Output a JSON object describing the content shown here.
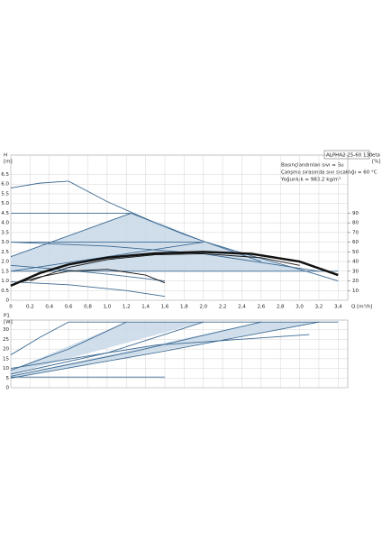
{
  "chart_data": [
    {
      "type": "line",
      "title": "ALPHA2 25-60 130",
      "notes": [
        "Basınçlandırılan sıvı = Su",
        "Çalışma sırasında sıvı sıcaklığı = 60 °C",
        "Yoğunluk = 983.2 kg/m³"
      ],
      "ylabel": [
        "H",
        "[m]"
      ],
      "y2label": [
        "eta",
        "[%]"
      ],
      "xlabel": "Q [m³/h]",
      "xlim": [
        0,
        3.5
      ],
      "ylim": [
        0,
        7.5
      ],
      "y2lim": [
        0,
        150
      ],
      "grid": true,
      "xticks": [
        0,
        {
          "value": 0.2,
          "label": "0,2"
        },
        {
          "value": 0.4,
          "label": "0,4"
        },
        {
          "value": 0.6,
          "label": "0,6"
        },
        {
          "value": 0.8,
          "label": "0,8"
        },
        {
          "value": 1.0,
          "label": "1,0"
        },
        {
          "value": 1.2,
          "label": "1,2"
        },
        {
          "value": 1.4,
          "label": "1,4"
        },
        {
          "value": 1.6,
          "label": "1,6"
        },
        {
          "value": 1.8,
          "label": "1,8"
        },
        {
          "value": 2.0,
          "label": "2,0"
        },
        {
          "value": 2.2,
          "label": "2,2"
        },
        {
          "value": 2.4,
          "label": "2,4"
        },
        {
          "value": 2.6,
          "label": "2,6"
        },
        {
          "value": 2.8,
          "label": "2,8"
        },
        {
          "value": 3.0,
          "label": "3,0"
        },
        {
          "value": 3.2,
          "label": "3,2"
        },
        {
          "value": 3.4,
          "label": "3,4"
        }
      ],
      "yticks": [
        0,
        0.5,
        {
          "value": 1.0,
          "label": "1.0"
        },
        1.5,
        {
          "value": 2.0,
          "label": "2.0"
        },
        2.5,
        {
          "value": 3.0,
          "label": "3.0"
        },
        3.5,
        {
          "value": 4.0,
          "label": "4.0"
        },
        4.5,
        {
          "value": 5.0,
          "label": "5.0"
        },
        5.5,
        {
          "value": 6.0,
          "label": "6.0"
        },
        6.5
      ],
      "y2ticks": [
        10,
        20,
        30,
        40,
        50,
        60,
        70,
        80,
        90
      ],
      "series": [
        {
          "fill": true,
          "color": "#c8d8e8",
          "x": [
            0,
            1.25,
            1.6,
            2.0,
            0
          ],
          "values": [
            2.25,
            4.5,
            3.9,
            3.0,
            1.5
          ]
        },
        {
          "fill": true,
          "color": "#c8d8e8",
          "x": [
            0,
            2.0,
            2.6,
            3.05,
            0
          ],
          "values": [
            1.5,
            3.0,
            2.2,
            1.5,
            1.5
          ]
        },
        {
          "color": "#3d6a92",
          "x": [
            0,
            0.3,
            0.6,
            1.0,
            1.5,
            2.0,
            2.5,
            3.0,
            3.4
          ],
          "values": [
            5.8,
            6.05,
            6.15,
            5.1,
            4.0,
            3.05,
            2.3,
            1.6,
            1.0
          ]
        },
        {
          "color": "#3d6a92",
          "x": [
            0,
            1.25
          ],
          "values": [
            4.5,
            4.5
          ]
        },
        {
          "color": "#3d6a92",
          "x": [
            0,
            2.0
          ],
          "values": [
            3.0,
            3.0
          ]
        },
        {
          "color": "#3d6a92",
          "x": [
            0,
            3.4
          ],
          "values": [
            1.5,
            1.5
          ]
        },
        {
          "color": "#3d6a92",
          "x": [
            0,
            1.25
          ],
          "values": [
            2.25,
            4.5
          ]
        },
        {
          "color": "#3d6a92",
          "x": [
            0,
            2.0
          ],
          "values": [
            1.5,
            3.0
          ]
        },
        {
          "color": "#3d6a92",
          "x": [
            1.25,
            1.8,
            2.6
          ],
          "values": [
            4.5,
            3.4,
            2.0
          ]
        },
        {
          "color": "#3d6a92",
          "x": [
            0,
            1.0,
            2.0,
            2.8,
            3.2
          ],
          "values": [
            3.0,
            2.8,
            2.4,
            1.8,
            1.5
          ]
        },
        {
          "color": "#3d6a92",
          "x": [
            0,
            0.5,
            1.0,
            1.6
          ],
          "values": [
            1.8,
            1.6,
            1.35,
            1.0
          ]
        },
        {
          "color": "#3d6a92",
          "x": [
            0,
            0.6,
            1.2,
            1.6
          ],
          "values": [
            0.95,
            0.8,
            0.5,
            0.2
          ]
        },
        {
          "color": "#111111",
          "x": [
            0,
            0.3,
            0.6,
            1.0,
            1.4,
            1.6
          ],
          "values": [
            0.8,
            1.2,
            1.5,
            1.6,
            1.3,
            0.9
          ]
        },
        {
          "color": "#111111",
          "x": [
            0.2,
            0.6,
            1.0,
            1.5,
            2.0,
            2.6,
            3.0
          ],
          "values": [
            1.0,
            1.7,
            2.1,
            2.35,
            2.4,
            2.2,
            1.8
          ]
        },
        {
          "color": "#111111",
          "linewidth": 2.5,
          "x": [
            0,
            0.3,
            0.6,
            1.0,
            1.5,
            2.0,
            2.5,
            3.0,
            3.4
          ],
          "values": [
            0.75,
            1.4,
            1.85,
            2.2,
            2.42,
            2.5,
            2.4,
            2.0,
            1.3
          ]
        }
      ]
    },
    {
      "type": "line",
      "ylabel": [
        "P1",
        "[W]"
      ],
      "xlim": [
        0,
        3.5
      ],
      "ylim": [
        0,
        35
      ],
      "grid": true,
      "xticks": [
        0,
        0.2,
        0.4,
        0.6,
        0.8,
        1.0,
        1.2,
        1.4,
        1.6,
        1.8,
        2.0,
        2.2,
        2.4,
        2.6,
        2.8,
        3.0,
        3.2,
        3.4
      ],
      "yticks": [
        0,
        5,
        10,
        15,
        20,
        25,
        30
      ],
      "series": [
        {
          "fill": true,
          "color": "#c8d8e8",
          "x": [
            0,
            1.2,
            2.0,
            0
          ],
          "values": [
            9,
            34,
            34,
            7
          ]
        },
        {
          "fill": true,
          "color": "#c8d8e8",
          "x": [
            0,
            2.6,
            3.2,
            0
          ],
          "values": [
            6,
            34,
            34,
            5
          ]
        },
        {
          "color": "#3d6a92",
          "x": [
            0.6,
            3.4
          ],
          "values": [
            34,
            34
          ]
        },
        {
          "color": "#3d6a92",
          "x": [
            0,
            0.3,
            0.6
          ],
          "values": [
            17,
            26,
            34
          ]
        },
        {
          "color": "#3d6a92",
          "x": [
            0,
            0.6,
            1.2
          ],
          "values": [
            9,
            20,
            34
          ]
        },
        {
          "color": "#3d6a92",
          "x": [
            0,
            1.0,
            2.0
          ],
          "values": [
            7,
            18,
            34
          ]
        },
        {
          "color": "#3d6a92",
          "x": [
            0,
            1.3,
            2.6
          ],
          "values": [
            6,
            19,
            34
          ]
        },
        {
          "color": "#3d6a92",
          "x": [
            0,
            1.6,
            3.2
          ],
          "values": [
            5,
            19,
            34
          ]
        },
        {
          "color": "#3d6a92",
          "x": [
            0,
            1.5,
            3.1
          ],
          "values": [
            10,
            22,
            27.5
          ]
        },
        {
          "color": "#3d6a92",
          "x": [
            0,
            1.6
          ],
          "values": [
            5.5,
            5.5
          ]
        }
      ]
    }
  ]
}
